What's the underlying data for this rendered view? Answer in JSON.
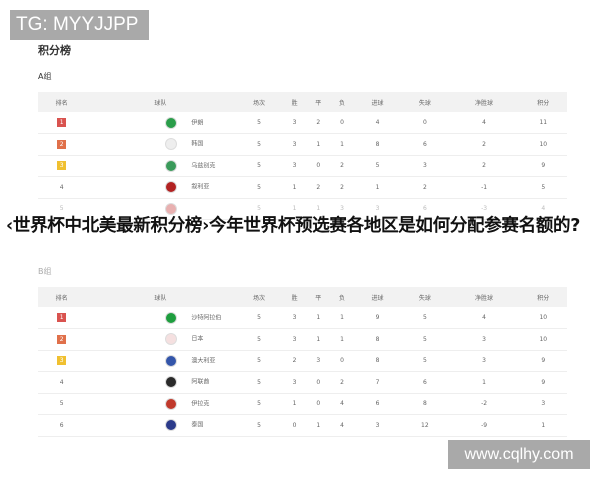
{
  "watermark_top": "TG: MYYJJPP",
  "page_title": "积分榜",
  "headers": [
    "排名",
    "球队",
    "场次",
    "胜",
    "平",
    "负",
    "进球",
    "失球",
    "净胜球",
    "积分"
  ],
  "group_a": {
    "label": "A组",
    "rows": [
      {
        "rank": "1",
        "team": "伊朗",
        "flag": "#2a9d4a",
        "badge": "#d9534f",
        "stats": [
          "5",
          "3",
          "2",
          "0",
          "4",
          "0",
          "4",
          "11"
        ]
      },
      {
        "rank": "2",
        "team": "韩国",
        "flag": "#eeeeee",
        "badge": "#e0704a",
        "stats": [
          "5",
          "3",
          "1",
          "1",
          "8",
          "6",
          "2",
          "10"
        ]
      },
      {
        "rank": "3",
        "team": "乌兹别克",
        "flag": "#3a9a5a",
        "badge": "#f0c030",
        "stats": [
          "5",
          "3",
          "0",
          "2",
          "5",
          "3",
          "2",
          "9"
        ]
      },
      {
        "rank": "4",
        "team": "叙利亚",
        "flag": "#b22222",
        "badge": "",
        "stats": [
          "5",
          "1",
          "2",
          "2",
          "1",
          "2",
          "-1",
          "5"
        ]
      },
      {
        "rank": "5",
        "team": "",
        "flag": "#e8b0b0",
        "badge": "",
        "stats": [
          "5",
          "1",
          "1",
          "3",
          "3",
          "6",
          "-3",
          "4"
        ]
      }
    ]
  },
  "headline": "‹世界杯中北美最新积分榜›今年世界杯预选赛各地区是如何分配参赛名额的?",
  "group_b": {
    "label": "B组",
    "rows": [
      {
        "rank": "1",
        "team": "沙特阿拉伯",
        "flag": "#1e9e3e",
        "badge": "#d9534f",
        "stats": [
          "5",
          "3",
          "1",
          "1",
          "9",
          "5",
          "4",
          "10"
        ]
      },
      {
        "rank": "2",
        "team": "日本",
        "flag": "#f5e0e0",
        "badge": "#e0704a",
        "stats": [
          "5",
          "3",
          "1",
          "1",
          "8",
          "5",
          "3",
          "10"
        ]
      },
      {
        "rank": "3",
        "team": "澳大利亚",
        "flag": "#3355aa",
        "badge": "#f0c030",
        "stats": [
          "5",
          "2",
          "3",
          "0",
          "8",
          "5",
          "3",
          "9"
        ]
      },
      {
        "rank": "4",
        "team": "阿联酋",
        "flag": "#2a2a2a",
        "badge": "",
        "stats": [
          "5",
          "3",
          "0",
          "2",
          "7",
          "6",
          "1",
          "9"
        ]
      },
      {
        "rank": "5",
        "team": "伊拉克",
        "flag": "#c0392b",
        "badge": "",
        "stats": [
          "5",
          "1",
          "0",
          "4",
          "6",
          "8",
          "-2",
          "3"
        ]
      },
      {
        "rank": "6",
        "team": "泰国",
        "flag": "#2b3a8a",
        "badge": "",
        "stats": [
          "5",
          "0",
          "1",
          "4",
          "3",
          "12",
          "-9",
          "1"
        ]
      }
    ]
  },
  "watermark_bottom": "www.cqlhy.com"
}
